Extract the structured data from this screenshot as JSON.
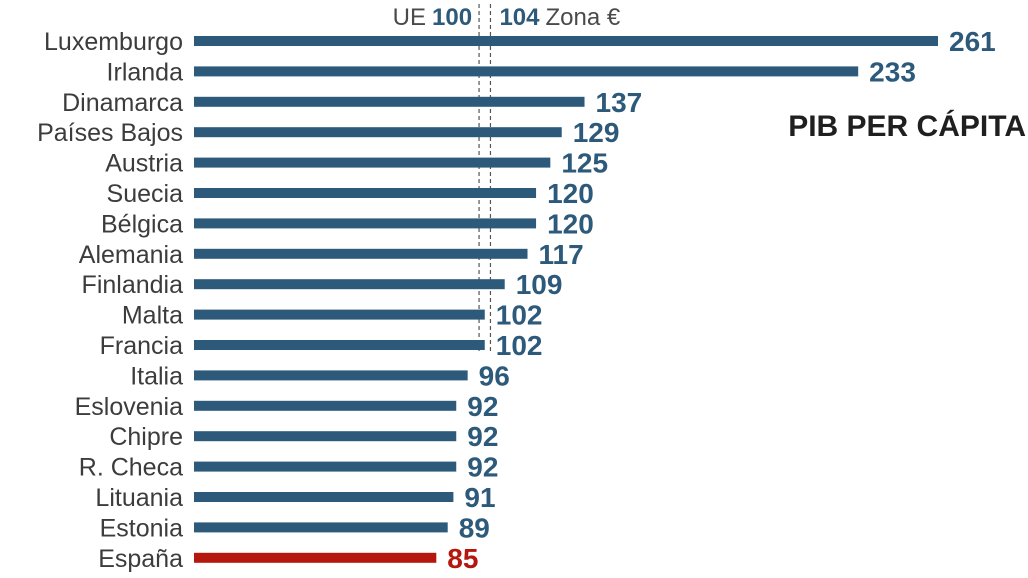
{
  "chart_data": {
    "type": "bar",
    "orientation": "horizontal",
    "title": "PIB PER CÁPITA",
    "categories": [
      "Luxemburgo",
      "Irlanda",
      "Dinamarca",
      "Países Bajos",
      "Austria",
      "Suecia",
      "Bélgica",
      "Alemania",
      "Finlandia",
      "Malta",
      "Francia",
      "Italia",
      "Eslovenia",
      "Chipre",
      "R. Checa",
      "Lituania",
      "Estonia",
      "España"
    ],
    "values": [
      261,
      233,
      137,
      129,
      125,
      120,
      120,
      117,
      109,
      102,
      102,
      96,
      92,
      92,
      92,
      91,
      89,
      85
    ],
    "highlight": "España",
    "reference_lines": [
      {
        "label": "UE",
        "value": 100
      },
      {
        "label": "Zona €",
        "value": 104
      }
    ],
    "colors": {
      "bar": "#2d5a7a",
      "highlight": "#b5160e"
    },
    "xlim": [
      0,
      261
    ],
    "grid": false,
    "legend": "none"
  }
}
